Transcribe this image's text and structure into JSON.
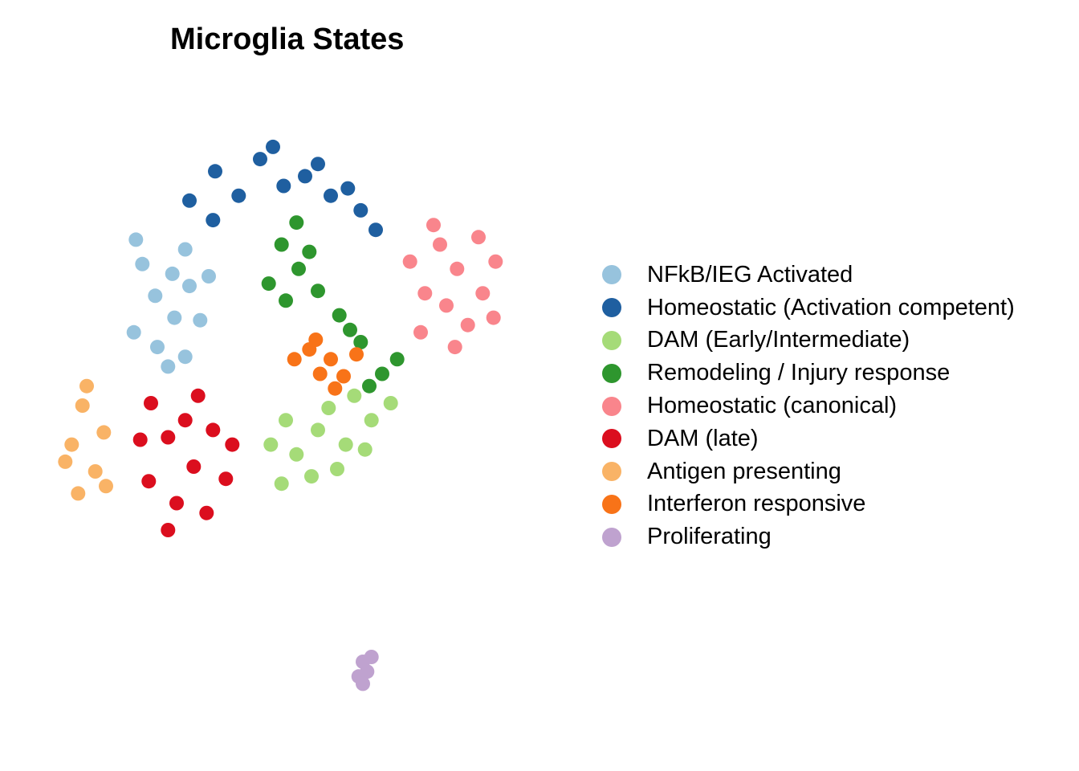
{
  "chart_data": {
    "type": "scatter",
    "title": "Microglia States",
    "xlabel": "",
    "ylabel": "",
    "axes_visible": false,
    "grid": false,
    "legend_position": "right",
    "x_range": [
      -12,
      12
    ],
    "y_range": [
      -14,
      12
    ],
    "series": [
      {
        "name": "NFkB/IEG Activated",
        "color": "#97C3DD",
        "points": [
          [
            -6.2,
            4.4
          ],
          [
            -7.0,
            3.5
          ],
          [
            -5.4,
            3.9
          ],
          [
            -7.6,
            4.8
          ],
          [
            -6.1,
            2.6
          ],
          [
            -4.9,
            2.5
          ],
          [
            -8.0,
            2.0
          ],
          [
            -5.6,
            5.4
          ],
          [
            -6.9,
            1.4
          ],
          [
            -4.5,
            4.3
          ],
          [
            -5.6,
            1.0
          ],
          [
            -7.9,
            5.8
          ],
          [
            -6.4,
            0.6
          ]
        ]
      },
      {
        "name": "Homeostatic (Activation competent)",
        "color": "#1F5FA0",
        "points": [
          [
            -4.2,
            8.6
          ],
          [
            -2.1,
            9.1
          ],
          [
            0.0,
            8.4
          ],
          [
            -3.1,
            7.6
          ],
          [
            -1.0,
            8.0
          ],
          [
            1.2,
            7.6
          ],
          [
            2.6,
            7.0
          ],
          [
            -5.4,
            7.4
          ],
          [
            -1.5,
            9.6
          ],
          [
            0.6,
            8.9
          ],
          [
            3.3,
            6.2
          ],
          [
            -4.3,
            6.6
          ],
          [
            2.0,
            7.9
          ]
        ]
      },
      {
        "name": "DAM (Early/Intermediate)",
        "color": "#A5DB78",
        "points": [
          [
            0.6,
            -2.0
          ],
          [
            1.9,
            -2.6
          ],
          [
            -0.4,
            -3.0
          ],
          [
            3.1,
            -1.6
          ],
          [
            1.5,
            -3.6
          ],
          [
            -0.9,
            -1.6
          ],
          [
            2.8,
            -2.8
          ],
          [
            0.3,
            -3.9
          ],
          [
            -1.6,
            -2.6
          ],
          [
            4.0,
            -0.9
          ],
          [
            1.1,
            -1.1
          ],
          [
            -1.1,
            -4.2
          ],
          [
            2.3,
            -0.6
          ]
        ]
      },
      {
        "name": "Remodeling / Injury response",
        "color": "#2E962E",
        "points": [
          [
            -1.1,
            5.6
          ],
          [
            -0.3,
            4.6
          ],
          [
            0.6,
            3.7
          ],
          [
            1.6,
            2.7
          ],
          [
            -1.7,
            4.0
          ],
          [
            2.6,
            1.6
          ],
          [
            3.6,
            0.3
          ],
          [
            0.2,
            5.3
          ],
          [
            -0.9,
            3.3
          ],
          [
            2.1,
            2.1
          ],
          [
            4.3,
            0.9
          ],
          [
            -0.4,
            6.5
          ],
          [
            3.0,
            -0.2
          ]
        ]
      },
      {
        "name": "Homeostatic (canonical)",
        "color": "#F9858C",
        "points": [
          [
            7.1,
            4.6
          ],
          [
            8.3,
            3.6
          ],
          [
            6.3,
            5.6
          ],
          [
            8.9,
            4.9
          ],
          [
            5.6,
            3.6
          ],
          [
            7.6,
            2.3
          ],
          [
            6.0,
            6.4
          ],
          [
            8.1,
            5.9
          ],
          [
            4.9,
            4.9
          ],
          [
            7.0,
            1.4
          ],
          [
            8.8,
            2.6
          ],
          [
            5.4,
            2.0
          ],
          [
            6.6,
            3.1
          ]
        ]
      },
      {
        "name": "DAM (late)",
        "color": "#DB0E1E",
        "points": [
          [
            -6.4,
            -2.3
          ],
          [
            -5.2,
            -3.5
          ],
          [
            -7.3,
            -4.1
          ],
          [
            -4.3,
            -2.0
          ],
          [
            -6.0,
            -5.0
          ],
          [
            -3.7,
            -4.0
          ],
          [
            -7.7,
            -2.4
          ],
          [
            -5.0,
            -0.6
          ],
          [
            -6.4,
            -6.1
          ],
          [
            -4.6,
            -5.4
          ],
          [
            -3.4,
            -2.6
          ],
          [
            -7.2,
            -0.9
          ],
          [
            -5.6,
            -1.6
          ]
        ]
      },
      {
        "name": "Antigen presenting",
        "color": "#F9B366",
        "points": [
          [
            -10.4,
            -1.0
          ],
          [
            -10.9,
            -2.6
          ],
          [
            -9.8,
            -3.7
          ],
          [
            -10.6,
            -4.6
          ],
          [
            -9.4,
            -2.1
          ],
          [
            -10.2,
            -0.2
          ],
          [
            -11.2,
            -3.3
          ],
          [
            -9.3,
            -4.3
          ]
        ]
      },
      {
        "name": "Interferon responsive",
        "color": "#F87318",
        "points": [
          [
            0.2,
            1.3
          ],
          [
            1.2,
            0.9
          ],
          [
            0.7,
            0.3
          ],
          [
            -0.5,
            0.9
          ],
          [
            1.8,
            0.2
          ],
          [
            0.5,
            1.7
          ],
          [
            1.4,
            -0.3
          ],
          [
            2.4,
            1.1
          ]
        ]
      },
      {
        "name": "Proliferating",
        "color": "#BFA2CF",
        "points": [
          [
            2.7,
            -11.5
          ],
          [
            2.9,
            -11.9
          ],
          [
            2.5,
            -12.1
          ],
          [
            3.1,
            -11.3
          ],
          [
            2.7,
            -12.4
          ]
        ]
      }
    ]
  }
}
